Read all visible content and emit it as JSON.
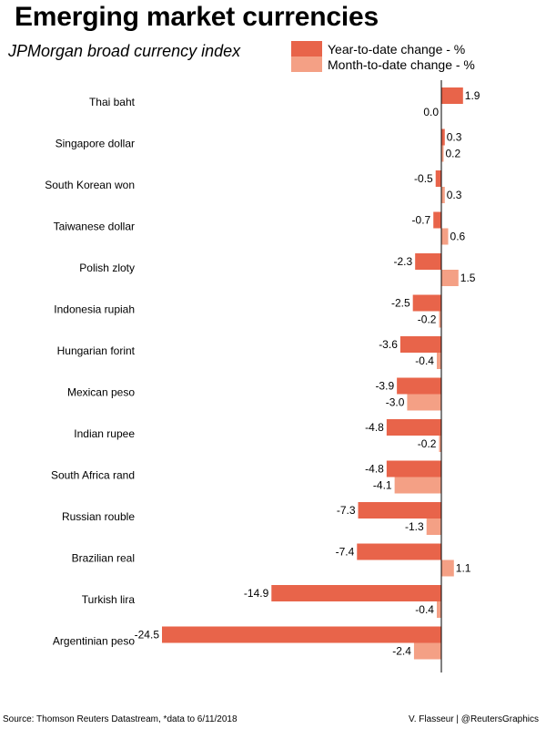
{
  "header": {
    "title": "Emerging market currencies",
    "subtitle": "JPMorgan broad currency index"
  },
  "legend": [
    {
      "label": "Year-to-date change - %",
      "color": "#e8644a"
    },
    {
      "label": "Month-to-date change - %",
      "color": "#f4a085"
    }
  ],
  "footer": {
    "source": "Source: Thomson Reuters Datastream, *data to 6/11/2018",
    "credit": "V. Flasseur | @ReutersGraphics"
  },
  "chart_data": {
    "type": "bar",
    "orientation": "horizontal",
    "title": "Emerging market currencies",
    "subtitle": "JPMorgan broad currency index",
    "xlabel": "",
    "ylabel": "",
    "xlim": [
      -24.5,
      2.5
    ],
    "grid": false,
    "legend_position": "top-right",
    "categories": [
      "Thai baht",
      "Singapore dollar",
      "South Korean won",
      "Taiwanese dollar",
      "Polish zloty",
      "Indonesia rupiah",
      "Hungarian forint",
      "Mexican peso",
      "Indian rupee",
      "South Africa rand",
      "Russian rouble",
      "Brazilian real",
      "Turkish lira",
      "Argentinian peso"
    ],
    "series": [
      {
        "name": "Year-to-date change - %",
        "color": "#e8644a",
        "values": [
          1.9,
          0.3,
          -0.5,
          -0.7,
          -2.3,
          -2.5,
          -3.6,
          -3.9,
          -4.8,
          -4.8,
          -7.3,
          -7.4,
          -14.9,
          -24.5
        ],
        "labels": [
          "1.9",
          "0.3",
          "-0.5",
          "-0.7",
          "-2.3",
          "-2.5",
          "-3.6",
          "-3.9",
          "-4.8",
          "-4.8",
          "-7.3",
          "-7.4",
          "-14.9",
          "-24.5"
        ]
      },
      {
        "name": "Month-to-date change - %",
        "color": "#f4a085",
        "values": [
          0.0,
          0.2,
          0.3,
          0.6,
          1.5,
          -0.2,
          -0.4,
          -3.0,
          -0.2,
          -4.1,
          -1.3,
          1.1,
          -0.4,
          -2.4
        ],
        "labels": [
          "0.0",
          "0.2",
          "0.3",
          "0.6",
          "1.5",
          "-0.2",
          "-0.4",
          "-3.0",
          "-0.2",
          "-4.1",
          "-1.3",
          "1.1",
          "-0.4",
          "-2.4"
        ]
      }
    ]
  }
}
